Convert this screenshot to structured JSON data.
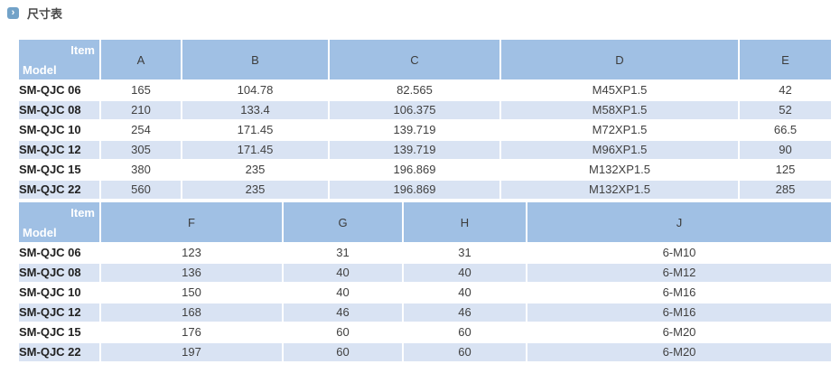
{
  "page": {
    "title": "尺寸表"
  },
  "icons": {
    "title_bullet": "chevron-right-icon",
    "title_bullet_glyph": "›"
  },
  "colors": {
    "header_bg": "#a0c0e4",
    "row_alt_bg": "#d9e3f3",
    "row_bg": "#ffffff",
    "icon_bg": "#72a2c8",
    "title_text": "#4a4a4a",
    "cell_text": "#404040",
    "model_text": "#222222",
    "header_text": "#ffffff"
  },
  "dimension_tables": [
    {
      "corner": {
        "top_right": "Item",
        "bottom_left": "Model"
      },
      "columns": [
        "A",
        "B",
        "C",
        "D",
        "E"
      ],
      "rows": [
        {
          "model": "SM-QJC 06",
          "values": [
            "165",
            "104.78",
            "82.565",
            "M45XP1.5",
            "42"
          ]
        },
        {
          "model": "SM-QJC 08",
          "values": [
            "210",
            "133.4",
            "106.375",
            "M58XP1.5",
            "52"
          ]
        },
        {
          "model": "SM-QJC 10",
          "values": [
            "254",
            "171.45",
            "139.719",
            "M72XP1.5",
            "66.5"
          ]
        },
        {
          "model": "SM-QJC 12",
          "values": [
            "305",
            "171.45",
            "139.719",
            "M96XP1.5",
            "90"
          ]
        },
        {
          "model": "SM-QJC 15",
          "values": [
            "380",
            "235",
            "196.869",
            "M132XP1.5",
            "125"
          ]
        },
        {
          "model": "SM-QJC 22",
          "values": [
            "560",
            "235",
            "196.869",
            "M132XP1.5",
            "285"
          ]
        }
      ]
    },
    {
      "corner": {
        "top_right": "Item",
        "bottom_left": "Model"
      },
      "columns": [
        "F",
        "G",
        "H",
        "J"
      ],
      "rows": [
        {
          "model": "SM-QJC 06",
          "values": [
            "123",
            "31",
            "31",
            "6-M10"
          ]
        },
        {
          "model": "SM-QJC 08",
          "values": [
            "136",
            "40",
            "40",
            "6-M12"
          ]
        },
        {
          "model": "SM-QJC 10",
          "values": [
            "150",
            "40",
            "40",
            "6-M16"
          ]
        },
        {
          "model": "SM-QJC 12",
          "values": [
            "168",
            "46",
            "46",
            "6-M16"
          ]
        },
        {
          "model": "SM-QJC 15",
          "values": [
            "176",
            "60",
            "60",
            "6-M20"
          ]
        },
        {
          "model": "SM-QJC 22",
          "values": [
            "197",
            "60",
            "60",
            "6-M20"
          ]
        }
      ]
    }
  ]
}
